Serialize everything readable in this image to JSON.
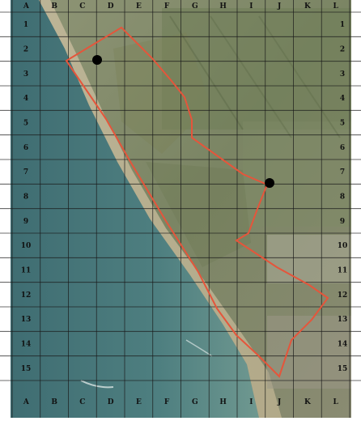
{
  "map": {
    "column_labels": [
      "A",
      "B",
      "C",
      "D",
      "E",
      "F",
      "G",
      "H",
      "I",
      "J",
      "K",
      "L"
    ],
    "row_labels": [
      "1",
      "2",
      "3",
      "4",
      "5",
      "6",
      "7",
      "8",
      "9",
      "10",
      "11",
      "12",
      "13",
      "14",
      "15"
    ],
    "boundary_color": "#e5553b",
    "grid_color": "#1a1a1a",
    "label_color": "#111111",
    "point_color": "#000000",
    "markers": [
      {
        "name": "point-C2",
        "grid_cell": "C2"
      },
      {
        "name": "point-J7",
        "grid_cell": "J7"
      }
    ]
  }
}
